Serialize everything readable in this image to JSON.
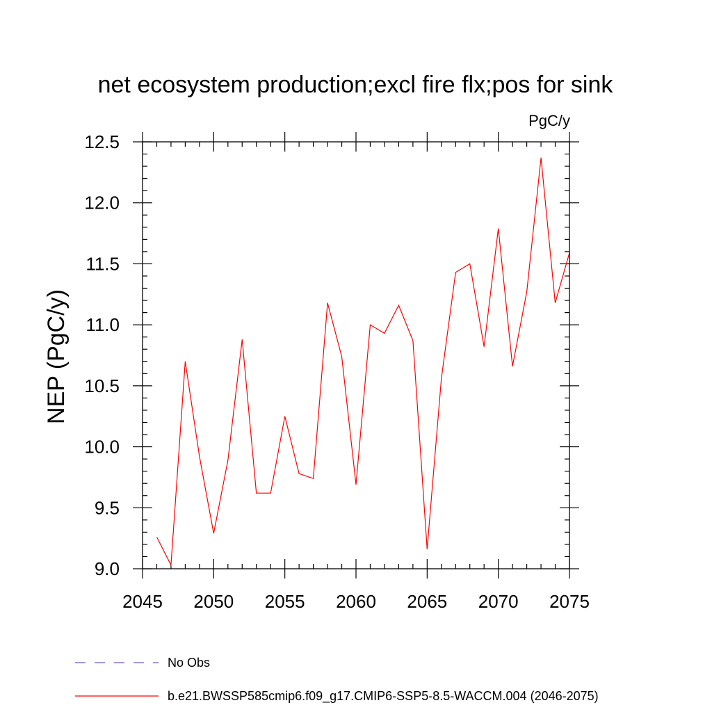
{
  "chart_data": {
    "type": "line",
    "title": "net ecosystem production;excl fire flx;pos for sink",
    "units": "PgC/y",
    "xlabel": "",
    "ylabel": "NEP  (PgC/y)",
    "xlim": [
      2045,
      2075
    ],
    "ylim": [
      9.0,
      12.5
    ],
    "xticks": [
      2045,
      2050,
      2055,
      2060,
      2065,
      2070,
      2075
    ],
    "xtick_labels": [
      "2045",
      "2050",
      "2055",
      "2060",
      "2065",
      "2070",
      "2075"
    ],
    "yticks": [
      9.0,
      9.5,
      10.0,
      10.5,
      11.0,
      11.5,
      12.0,
      12.5
    ],
    "ytick_labels": [
      "9.0",
      "9.5",
      "10.0",
      "10.5",
      "11.0",
      "11.5",
      "12.0",
      "12.5"
    ],
    "grid": false,
    "series": [
      {
        "name": "b.e21.BWSSP585cmip6.f09_g17.CMIP6-SSP5-8.5-WACCM.004 (2046-2075)",
        "color": "#ff0000",
        "x": [
          2046,
          2047,
          2048,
          2049,
          2050,
          2051,
          2052,
          2053,
          2054,
          2055,
          2056,
          2057,
          2058,
          2059,
          2060,
          2061,
          2062,
          2063,
          2064,
          2065,
          2066,
          2067,
          2068,
          2069,
          2070,
          2071,
          2072,
          2073,
          2074,
          2075
        ],
        "y": [
          9.26,
          9.03,
          10.7,
          9.92,
          9.29,
          9.89,
          10.88,
          9.62,
          9.62,
          10.25,
          9.78,
          9.74,
          11.18,
          10.74,
          9.69,
          11.0,
          10.93,
          11.16,
          10.87,
          9.16,
          10.56,
          11.43,
          11.5,
          10.82,
          11.79,
          10.66,
          11.27,
          12.37,
          11.18,
          11.59
        ]
      }
    ],
    "legend": [
      {
        "label": "No Obs",
        "color": "#6a5acd",
        "style": "dashed"
      },
      {
        "label": "b.e21.BWSSP585cmip6.f09_g17.CMIP6-SSP5-8.5-WACCM.004 (2046-2075)",
        "color": "#ff0000",
        "style": "solid"
      }
    ]
  }
}
